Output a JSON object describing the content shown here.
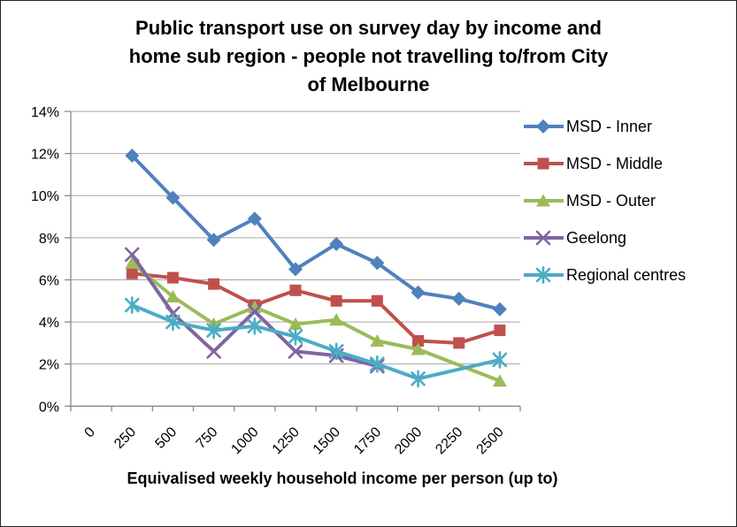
{
  "title": "Public transport use on survey day by income and\nhome sub region - people not travelling to/from City\nof Melbourne",
  "chart_data": {
    "type": "line",
    "title": "Public transport use on survey day by income and home sub region - people not travelling to/from City of Melbourne",
    "xlabel": "Equivalised weekly household income per person (up to)",
    "ylabel": "",
    "ylim": [
      0,
      14
    ],
    "ytick_step": 2,
    "ytick_suffix": "%",
    "grid": true,
    "legend_position": "right",
    "categories": [
      "0",
      "250",
      "500",
      "750",
      "1000",
      "1250",
      "1500",
      "1750",
      "2000",
      "2250",
      "2500"
    ],
    "series": [
      {
        "name": "MSD - Inner",
        "color": "#4F81BD",
        "marker": "diamond",
        "values": [
          null,
          11.9,
          9.9,
          7.9,
          8.9,
          6.5,
          7.7,
          6.8,
          5.4,
          5.1,
          4.6
        ]
      },
      {
        "name": "MSD - Middle",
        "color": "#C0504D",
        "marker": "square",
        "values": [
          null,
          6.3,
          6.1,
          5.8,
          4.8,
          5.5,
          5.0,
          5.0,
          3.1,
          3.0,
          3.6
        ]
      },
      {
        "name": "MSD - Outer",
        "color": "#9BBB59",
        "marker": "triangle",
        "values": [
          null,
          6.8,
          5.2,
          3.9,
          4.7,
          3.9,
          4.1,
          3.1,
          2.7,
          null,
          1.2
        ]
      },
      {
        "name": "Geelong",
        "color": "#8064A2",
        "marker": "x",
        "values": [
          null,
          7.2,
          4.4,
          2.6,
          4.5,
          2.6,
          2.4,
          1.9,
          null,
          null,
          null
        ]
      },
      {
        "name": "Regional centres",
        "color": "#4BACC6",
        "marker": "star",
        "values": [
          null,
          4.8,
          4.0,
          3.6,
          3.8,
          3.3,
          2.6,
          2.0,
          1.3,
          null,
          2.2
        ]
      }
    ],
    "colors": {
      "gridline": "#A6A6A6",
      "axis": "#898989",
      "text": "#000000"
    }
  }
}
